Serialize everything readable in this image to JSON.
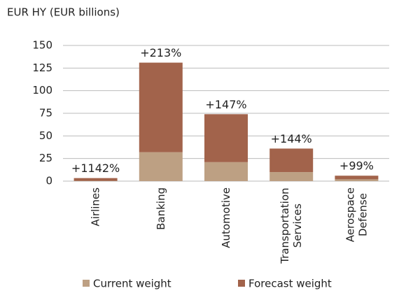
{
  "chart_data": {
    "type": "stacked_bar",
    "title": "EUR HY (EUR billions)",
    "categories": [
      "Airlines",
      "Banking",
      "Automotive",
      "Transportation Services",
      "Aerospace Defense"
    ],
    "series": [
      {
        "name": "Current weight",
        "color": "#bda083",
        "values": [
          0.25,
          32,
          21,
          10,
          2
        ]
      },
      {
        "name": "Forecast weight",
        "color": "#a2634b",
        "values": [
          3.1,
          99,
          53,
          26,
          4
        ]
      }
    ],
    "annotations": [
      "+1142%",
      "+213%",
      "+147%",
      "+144%",
      "+99%"
    ],
    "ylim": [
      0,
      150
    ],
    "yticks": [
      0,
      25,
      50,
      75,
      100,
      125,
      150
    ],
    "grid": true,
    "legend": "bottom"
  }
}
